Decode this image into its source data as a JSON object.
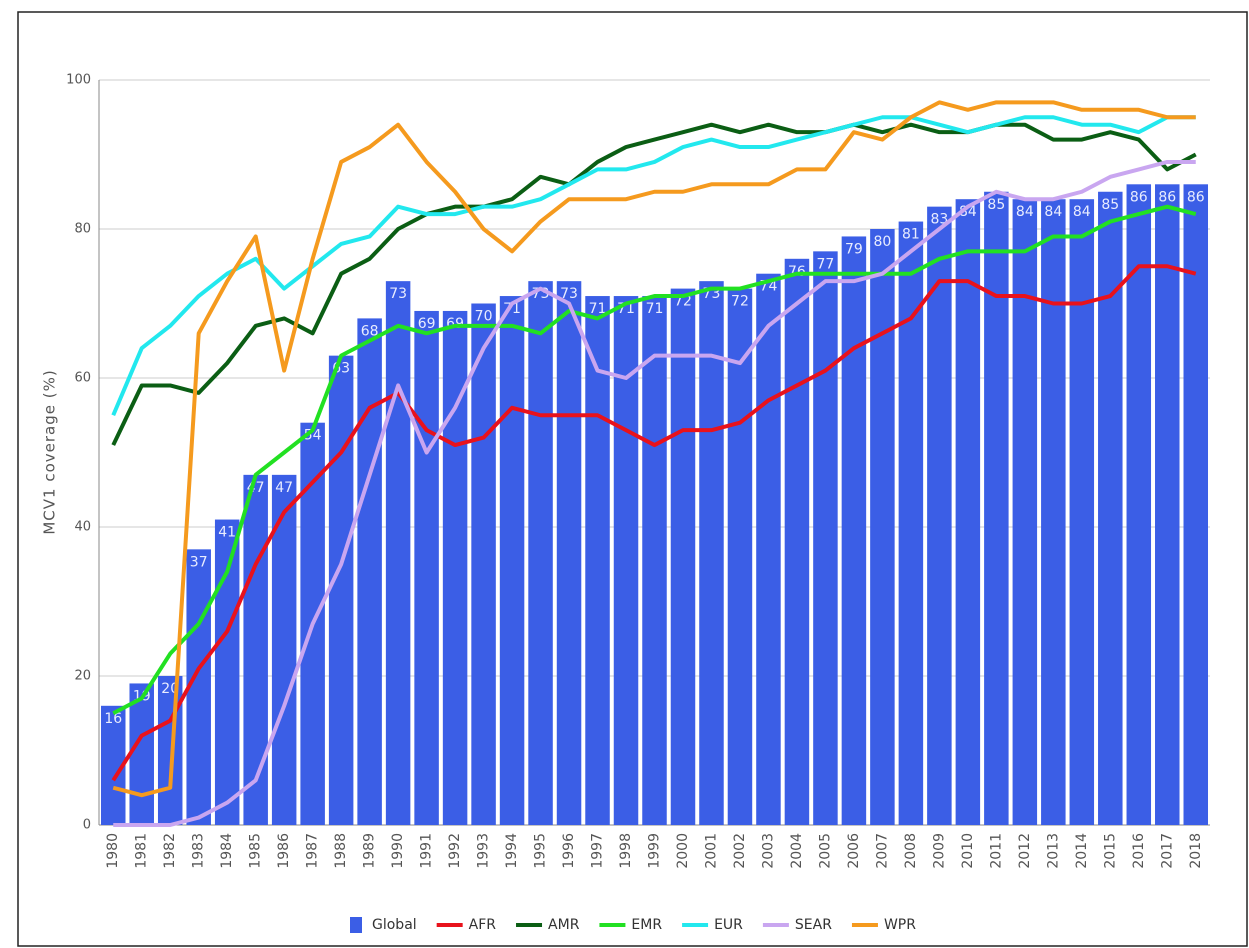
{
  "chart_data": {
    "type": "bar-line",
    "y_label": "MCV1 coverage (%)",
    "categories": [
      "1980",
      "1981",
      "1982",
      "1983",
      "1984",
      "1985",
      "1986",
      "1987",
      "1988",
      "1989",
      "1990",
      "1991",
      "1992",
      "1993",
      "1994",
      "1995",
      "1996",
      "1997",
      "1998",
      "1999",
      "2000",
      "2001",
      "2002",
      "2003",
      "2004",
      "2005",
      "2006",
      "2007",
      "2008",
      "2009",
      "2010",
      "2011",
      "2012",
      "2013",
      "2014",
      "2015",
      "2016",
      "2017",
      "2018"
    ],
    "series": [
      {
        "name": "Global",
        "type": "bar",
        "color": "#3b5ee6",
        "values": [
          16,
          19,
          20,
          37,
          41,
          47,
          47,
          54,
          63,
          68,
          73,
          69,
          69,
          70,
          71,
          73,
          73,
          71,
          71,
          71,
          72,
          73,
          72,
          74,
          76,
          77,
          79,
          80,
          81,
          83,
          84,
          85,
          84,
          84,
          84,
          85,
          86,
          86,
          86
        ]
      },
      {
        "name": "AFR",
        "type": "line",
        "color": "#e8121c",
        "values": [
          6,
          12,
          14,
          21,
          26,
          35,
          42,
          46,
          50,
          56,
          58,
          53,
          51,
          52,
          56,
          55,
          55,
          55,
          53,
          51,
          53,
          53,
          54,
          57,
          59,
          61,
          64,
          66,
          68,
          73,
          73,
          71,
          71,
          70,
          70,
          71,
          75,
          75,
          74
        ]
      },
      {
        "name": "AMR",
        "type": "line",
        "color": "#0b5e14",
        "values": [
          51,
          59,
          59,
          58,
          62,
          67,
          68,
          66,
          74,
          76,
          80,
          82,
          83,
          83,
          84,
          87,
          86,
          89,
          91,
          92,
          93,
          94,
          93,
          94,
          93,
          93,
          94,
          93,
          94,
          93,
          93,
          94,
          94,
          92,
          92,
          93,
          92,
          88,
          90
        ]
      },
      {
        "name": "EMR",
        "type": "line",
        "color": "#22e022",
        "values": [
          15,
          17,
          23,
          27,
          34,
          47,
          50,
          53,
          63,
          65,
          67,
          66,
          67,
          67,
          67,
          66,
          69,
          68,
          70,
          71,
          71,
          72,
          72,
          73,
          74,
          74,
          74,
          74,
          74,
          76,
          77,
          77,
          77,
          79,
          79,
          81,
          82,
          83,
          82
        ]
      },
      {
        "name": "EUR",
        "type": "line",
        "color": "#22e8ee",
        "values": [
          55,
          64,
          67,
          71,
          74,
          76,
          72,
          75,
          78,
          79,
          83,
          82,
          82,
          83,
          83,
          84,
          86,
          88,
          88,
          89,
          91,
          92,
          91,
          91,
          92,
          93,
          94,
          95,
          95,
          94,
          93,
          94,
          95,
          95,
          94,
          94,
          93,
          95,
          95
        ]
      },
      {
        "name": "SEAR",
        "type": "line",
        "color": "#c9a6f0",
        "values": [
          0,
          0,
          0,
          1,
          3,
          6,
          16,
          27,
          35,
          47,
          59,
          50,
          56,
          64,
          70,
          72,
          70,
          61,
          60,
          63,
          63,
          63,
          62,
          67,
          70,
          73,
          73,
          74,
          77,
          80,
          83,
          85,
          84,
          84,
          85,
          87,
          88,
          89,
          89
        ]
      },
      {
        "name": "WPR",
        "type": "line",
        "color": "#f59a1e",
        "values": [
          5,
          4,
          5,
          66,
          73,
          79,
          61,
          76,
          89,
          91,
          94,
          89,
          85,
          80,
          77,
          81,
          84,
          84,
          84,
          85,
          85,
          86,
          86,
          86,
          88,
          88,
          93,
          92,
          95,
          97,
          96,
          97,
          97,
          97,
          96,
          96,
          96,
          95,
          95
        ]
      }
    ],
    "ylim": [
      0,
      100
    ],
    "yticks": [
      0,
      20,
      40,
      60,
      80,
      100
    ],
    "grid": true,
    "legend": "bottom"
  }
}
